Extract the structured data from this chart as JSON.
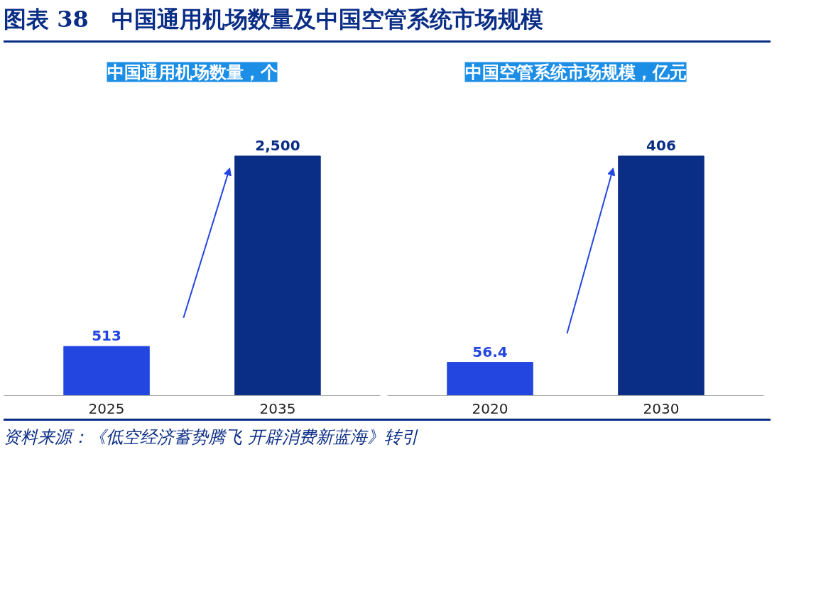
{
  "chart_data": [
    {
      "type": "bar",
      "title": "中国通用机场数量，个",
      "categories": [
        "2025",
        "2035"
      ],
      "values": [
        513,
        2500
      ],
      "value_labels": [
        "513",
        "2,500"
      ],
      "colors": [
        "#2446e0",
        "#0a2d86"
      ],
      "tick_labels": "x",
      "grid": false,
      "annotations": [
        "图表 38　中国通用机场数量及中国空管系统市场规模"
      ]
    },
    {
      "type": "bar",
      "title": "中国空管系统市场规模，亿元",
      "categories": [
        "2020",
        "2030"
      ],
      "values": [
        56.4,
        406
      ],
      "value_labels": [
        "56.4",
        "406"
      ],
      "colors": [
        "#2446e0",
        "#0a2d86"
      ],
      "tick_labels": "x",
      "grid": false,
      "annotations": [
        "资料来源：《低空经济蓄势腾飞 开辟消费新蓝海》转引"
      ]
    }
  ]
}
